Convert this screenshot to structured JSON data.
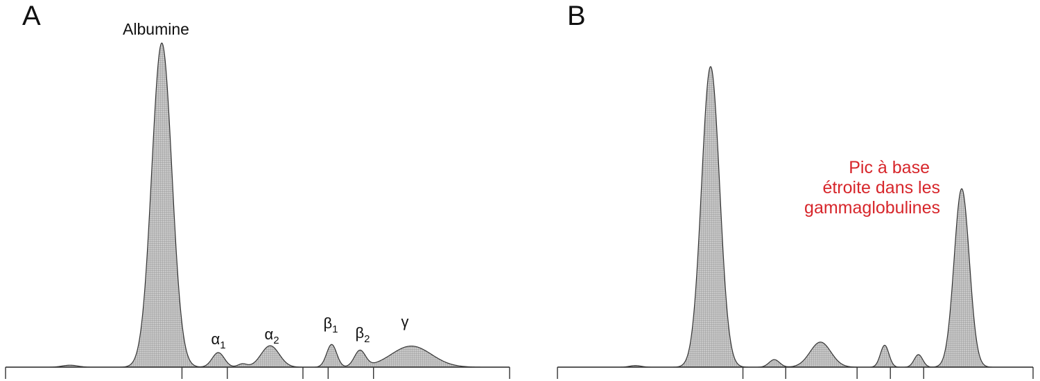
{
  "colors": {
    "curve": "#333333",
    "fill": "#b9b9b9",
    "annotation": "#d7262b",
    "text": "#111111"
  },
  "chart_data": [
    {
      "type": "area",
      "panel": "A",
      "xlim": [
        0,
        100
      ],
      "ylim": [
        0,
        100
      ],
      "grid": false,
      "x_ticks": [
        0,
        35,
        44,
        59,
        64,
        73,
        100
      ],
      "baseline_noise": [
        {
          "center": 12.8,
          "height": 0.6,
          "width": 1.5
        }
      ],
      "peaks": [
        {
          "label": "Albumine",
          "sub": "",
          "center": 31,
          "height": 100,
          "width": 2.0
        },
        {
          "label": "α",
          "sub": "1",
          "center": 42.2,
          "height": 4.5,
          "width": 1.2
        },
        {
          "label": "α",
          "sub": "2",
          "center": 52.5,
          "height": 6.6,
          "width": 1.8
        },
        {
          "label": "β",
          "sub": "1",
          "center": 64.7,
          "height": 7.0,
          "width": 1.0
        },
        {
          "label": "β",
          "sub": "2",
          "center": 70.3,
          "height": 5.0,
          "width": 1.1
        },
        {
          "label": "γ",
          "sub": "",
          "center": 80.5,
          "height": 6.5,
          "width": 4.0
        },
        {
          "label": "",
          "sub": "",
          "center": 47.0,
          "height": 1.0,
          "width": 0.9
        }
      ]
    },
    {
      "type": "area",
      "panel": "B",
      "xlim": [
        0,
        100
      ],
      "ylim": [
        0,
        100
      ],
      "grid": false,
      "x_ticks": [
        0,
        39,
        48,
        63,
        70,
        77,
        100
      ],
      "baseline_noise": [
        {
          "center": 16.4,
          "height": 0.5,
          "width": 1.2
        }
      ],
      "peaks": [
        {
          "label": "",
          "sub": "",
          "center": 32.2,
          "height": 96,
          "width": 1.9
        },
        {
          "label": "",
          "sub": "",
          "center": 45.6,
          "height": 2.4,
          "width": 1.1
        },
        {
          "label": "",
          "sub": "",
          "center": 55.3,
          "height": 8.0,
          "width": 2.2
        },
        {
          "label": "",
          "sub": "",
          "center": 68.8,
          "height": 7.0,
          "width": 0.9
        },
        {
          "label": "",
          "sub": "",
          "center": 75.9,
          "height": 4.0,
          "width": 0.9
        },
        {
          "label": "",
          "sub": "",
          "center": 85.0,
          "height": 57,
          "width": 1.6
        }
      ]
    }
  ],
  "panel_a": {
    "letter": "A",
    "albumin_label": "Albumine",
    "alpha1": {
      "greek": "α",
      "sub": "1"
    },
    "alpha2": {
      "greek": "α",
      "sub": "2"
    },
    "beta1": {
      "greek": "β",
      "sub": "1"
    },
    "beta2": {
      "greek": "β",
      "sub": "2"
    },
    "gamma": {
      "greek": "γ",
      "sub": ""
    }
  },
  "panel_b": {
    "letter": "B",
    "annotation_lines": [
      "Pic à base",
      "étroite dans les",
      "gammaglobulines"
    ]
  }
}
